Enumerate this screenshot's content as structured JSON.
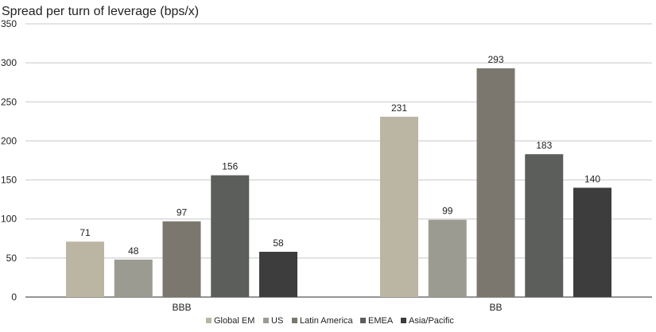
{
  "chart_data": {
    "type": "bar",
    "title": "Spread per turn of leverage (bps/x)",
    "xlabel": "",
    "ylabel": "",
    "categories": [
      "BBB",
      "BB"
    ],
    "series": [
      {
        "name": "Global EM",
        "values": [
          71,
          231
        ],
        "color": "#BBB5A4"
      },
      {
        "name": "US",
        "values": [
          48,
          99
        ],
        "color": "#9B9B92"
      },
      {
        "name": "Latin America",
        "values": [
          97,
          293
        ],
        "color": "#7B776E"
      },
      {
        "name": "EMEA",
        "values": [
          156,
          183
        ],
        "color": "#5C5E5C"
      },
      {
        "name": "Asia/Pacific",
        "values": [
          58,
          140
        ],
        "color": "#3D3D3D"
      }
    ],
    "ylim": [
      0,
      350
    ],
    "yticks": [
      0,
      50,
      100,
      150,
      200,
      250,
      300,
      350
    ],
    "grid": true,
    "legend": "bottom"
  }
}
